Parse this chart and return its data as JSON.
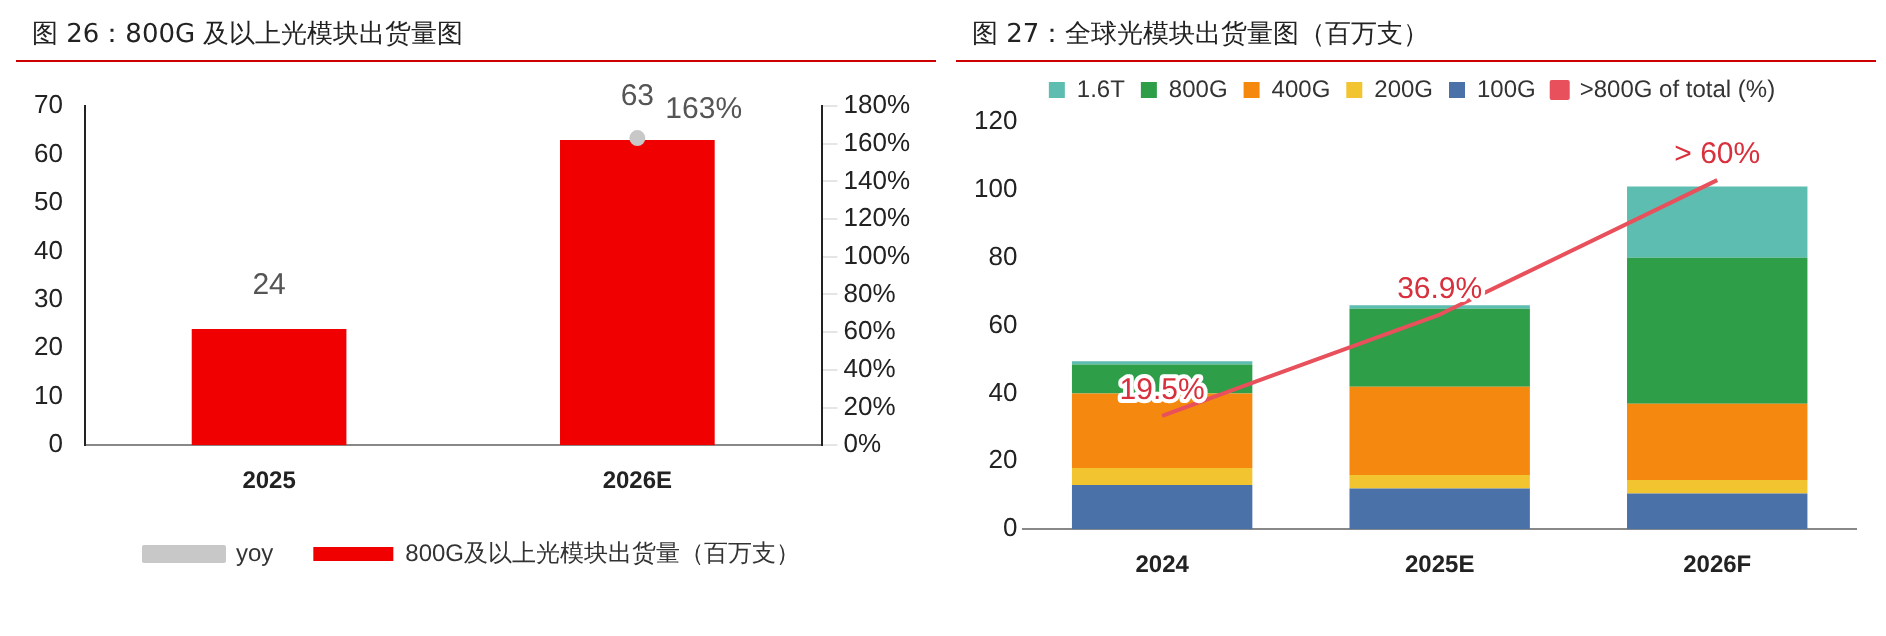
{
  "chart_data": [
    {
      "type": "bar",
      "title": "图 26：800G 及以上光模块出货量图",
      "categories": [
        "2025",
        "2026E"
      ],
      "series": [
        {
          "name": "800G及以上光模块出货量（百万支）",
          "color": "#f00000",
          "values": [
            24,
            63
          ]
        },
        {
          "name": "yoy",
          "type": "line",
          "axis": "y2",
          "color": "#c8c8c8",
          "values": [
            null,
            163
          ],
          "value_labels": [
            null,
            "163%"
          ]
        }
      ],
      "ylim": [
        0,
        70
      ],
      "yticks": [
        0,
        10,
        20,
        30,
        40,
        50,
        60,
        70
      ],
      "y2lim": [
        0,
        180
      ],
      "y2ticks": [
        {
          "value": 0,
          "label": "0%"
        },
        {
          "value": 20,
          "label": "20%"
        },
        {
          "value": 40,
          "label": "40%"
        },
        {
          "value": 60,
          "label": "60%"
        },
        {
          "value": 80,
          "label": "80%"
        },
        {
          "value": 100,
          "label": "100%"
        },
        {
          "value": 120,
          "label": "120%"
        },
        {
          "value": 140,
          "label": "140%"
        },
        {
          "value": 160,
          "label": "160%"
        },
        {
          "value": 180,
          "label": "180%"
        }
      ],
      "data_labels": true,
      "legend": "bottom",
      "marker": "circle",
      "grid": false
    },
    {
      "type": "bar",
      "title": "图 27：全球光模块出货量图（百万支）",
      "categories": [
        "2024",
        "2025E",
        "2026F"
      ],
      "stacked": true,
      "series": [
        {
          "name": "100G",
          "color": "#4a72a8",
          "values": [
            13,
            12,
            10.5
          ]
        },
        {
          "name": "200G",
          "color": "#f2c530",
          "values": [
            5,
            4,
            4
          ]
        },
        {
          "name": "400G",
          "color": "#f5880f",
          "values": [
            22,
            26,
            22.5
          ]
        },
        {
          "name": "800G",
          "color": "#2e9e48",
          "values": [
            8.5,
            23,
            43
          ]
        },
        {
          "name": "1.6T",
          "color": "#5dbdb0",
          "values": [
            1,
            1,
            21
          ]
        },
        {
          "name": ">800G of total (%)",
          "type": "line",
          "axis": "y2",
          "color": "#e8505b",
          "values": [
            19.5,
            36.9,
            60
          ],
          "value_labels": [
            "19.5%",
            "36.9%",
            "> 60%"
          ]
        }
      ],
      "ylim": [
        0,
        120
      ],
      "yticks": [
        0,
        20,
        40,
        60,
        80,
        100,
        120
      ],
      "legend": "top",
      "grid": false
    }
  ]
}
